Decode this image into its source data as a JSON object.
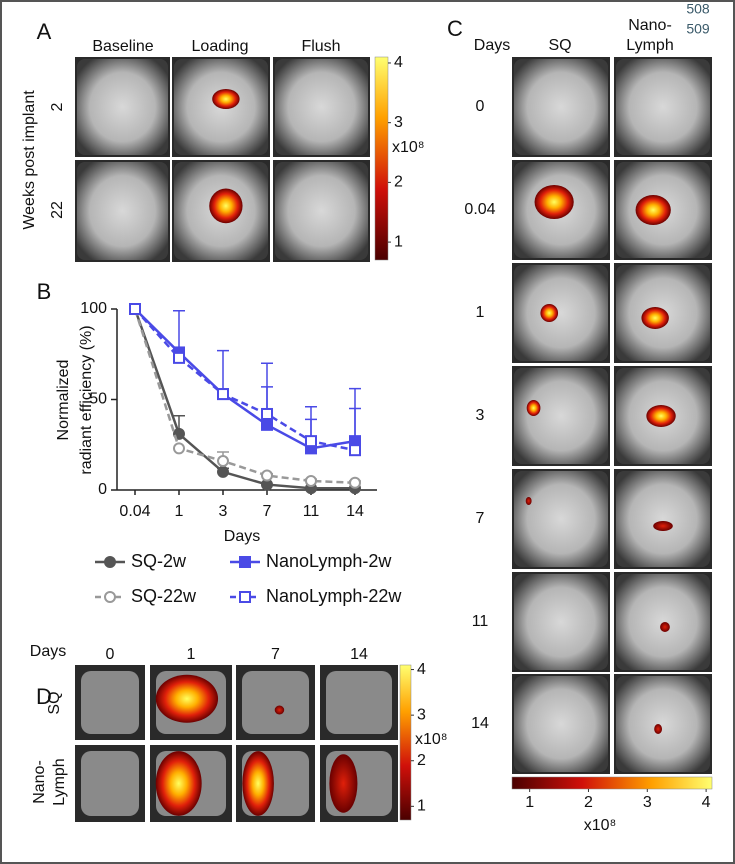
{
  "panel_a": {
    "label": "A",
    "columns": [
      "Baseline",
      "Loading",
      "Flush"
    ],
    "row_axis_label": "Weeks post implant",
    "rows": [
      "2",
      "22"
    ],
    "colorbar": {
      "range": [
        0.7,
        4.1
      ],
      "ticks": [
        1,
        2,
        3,
        4
      ],
      "unit": "x10⁸"
    }
  },
  "chart_data": {
    "type": "line",
    "panel_label": "B",
    "xlabel": "Days",
    "ylabel": [
      "Normalized",
      "radiant efficiency (%)"
    ],
    "categories": [
      "0.04",
      "1",
      "3",
      "7",
      "11",
      "14"
    ],
    "ylim": [
      0,
      100
    ],
    "yticks": [
      0,
      50,
      100
    ],
    "series": [
      {
        "name": "SQ-2w",
        "color": "#555555",
        "dash": false,
        "marker": "circle",
        "filled": true,
        "values": [
          100,
          31,
          10,
          3,
          1,
          1
        ],
        "errors": [
          0,
          10,
          2,
          0,
          0,
          0
        ]
      },
      {
        "name": "SQ-22w",
        "color": "#999999",
        "dash": true,
        "marker": "circle",
        "filled": false,
        "values": [
          100,
          23,
          16,
          8,
          5,
          4
        ],
        "errors": [
          0,
          0,
          5,
          1,
          1,
          1
        ]
      },
      {
        "name": "NanoLymph-2w",
        "color": "#4a4ae6",
        "dash": false,
        "marker": "square",
        "filled": true,
        "values": [
          100,
          76,
          53,
          36,
          23,
          27
        ],
        "errors": [
          0,
          23,
          24,
          34,
          23,
          29
        ]
      },
      {
        "name": "NanoLymph-22w",
        "color": "#4a4ae6",
        "dash": true,
        "marker": "square",
        "filled": false,
        "values": [
          100,
          73,
          53,
          42,
          27,
          22
        ],
        "errors": [
          0,
          0,
          0,
          15,
          12,
          23
        ]
      }
    ]
  },
  "panel_c": {
    "label": "C",
    "row_header": "Days",
    "columns": [
      [
        "SQ"
      ],
      [
        "Nano-",
        "Lymph"
      ]
    ],
    "overlay": [
      "508",
      "509"
    ],
    "rows": [
      "0",
      "0.04",
      "1",
      "3",
      "7",
      "11",
      "14"
    ],
    "colorbar": {
      "range": [
        0.7,
        4.1
      ],
      "ticks": [
        1,
        2,
        3,
        4
      ],
      "unit": "x10⁸"
    }
  },
  "panel_d": {
    "label": "D",
    "column_header": "Days",
    "columns": [
      "0",
      "1",
      "7",
      "14"
    ],
    "rows": [
      [
        "SQ"
      ],
      [
        "Nano-",
        "Lymph"
      ]
    ],
    "colorbar": {
      "range": [
        0.7,
        4.1
      ],
      "ticks": [
        1,
        2,
        3,
        4
      ],
      "unit": "x10⁸"
    }
  }
}
